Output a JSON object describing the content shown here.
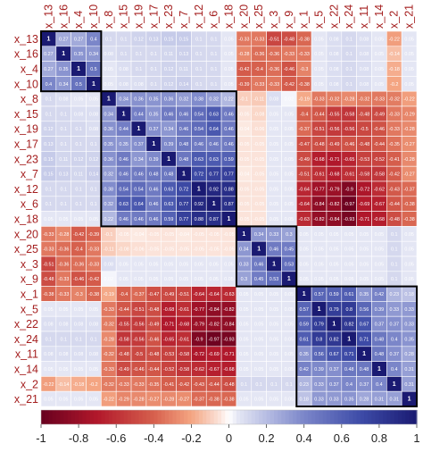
{
  "chart_data": {
    "type": "heatmap",
    "title": "",
    "variables": [
      "x_13",
      "x_16",
      "x_4",
      "x_10",
      "x_8",
      "x_15",
      "x_19",
      "x_17",
      "x_23",
      "x_7",
      "x_12",
      "x_6",
      "x_18",
      "x_20",
      "x_25",
      "x_3",
      "x_9",
      "x_1",
      "x_5",
      "x_22",
      "x_24",
      "x_11",
      "x_14",
      "x_2",
      "x_21"
    ],
    "clusters": [
      [
        0,
        3
      ],
      [
        4,
        12
      ],
      [
        13,
        16
      ],
      [
        17,
        24
      ]
    ],
    "colorbar": {
      "range": [
        -1,
        1
      ],
      "ticks": [
        "-1",
        "-0.8",
        "-0.6",
        "-0.4",
        "-0.2",
        "0",
        "0.2",
        "0.4",
        "0.6",
        "0.8",
        "1"
      ],
      "colors": {
        "negative": "#67001f",
        "mid": "#ffffff",
        "positive": "#1a1a72"
      }
    },
    "matrix": [
      [
        1,
        0.27,
        0.27,
        0.4,
        0.1,
        0.1,
        0.12,
        0.13,
        0.15,
        0.15,
        0.1,
        0.1,
        0.05,
        -0.33,
        -0.33,
        -0.51,
        -0.48,
        -0.38,
        0.05,
        0.08,
        0.1,
        0.08,
        0.05,
        -0.22,
        0.05
      ],
      [
        0.27,
        1,
        0.35,
        0.34,
        0.08,
        0.1,
        0.1,
        0.1,
        0.11,
        0.13,
        0.1,
        0.1,
        0.05,
        -0.28,
        -0.36,
        -0.36,
        -0.33,
        -0.33,
        0.05,
        0.08,
        0.1,
        0.08,
        0.05,
        -0.14,
        0.05
      ],
      [
        0.27,
        0.35,
        1,
        0.5,
        0.05,
        0.08,
        0.1,
        0.1,
        0.12,
        0.11,
        0.1,
        0.1,
        0.05,
        -0.42,
        -0.4,
        -0.36,
        -0.46,
        -0.3,
        0.05,
        0.08,
        0.1,
        0.08,
        0.05,
        -0.18,
        0.05
      ],
      [
        0.4,
        0.34,
        0.5,
        1,
        0.05,
        0.08,
        0.08,
        0.1,
        0.12,
        0.14,
        0.1,
        0.1,
        0.05,
        -0.39,
        -0.33,
        -0.33,
        -0.42,
        -0.38,
        0.05,
        0.08,
        0.1,
        0.08,
        0.05,
        -0.2,
        0.05
      ],
      [
        0.1,
        0.08,
        0.05,
        0.05,
        1,
        0.34,
        0.36,
        0.35,
        0.36,
        0.32,
        0.38,
        0.32,
        0.22,
        -0.1,
        -0.11,
        0.08,
        0.02,
        -0.19,
        -0.33,
        -0.32,
        -0.28,
        -0.32,
        -0.33,
        -0.32,
        -0.22
      ],
      [
        0.1,
        0.1,
        0.08,
        0.08,
        0.34,
        1,
        0.44,
        0.35,
        0.46,
        0.46,
        0.54,
        0.63,
        0.46,
        -0.05,
        -0.08,
        0.05,
        0.05,
        -0.4,
        -0.44,
        -0.55,
        -0.58,
        -0.48,
        -0.49,
        -0.33,
        -0.29
      ],
      [
        0.12,
        0.1,
        0.1,
        0.08,
        0.36,
        0.44,
        1,
        0.37,
        0.34,
        0.46,
        0.54,
        0.64,
        0.46,
        -0.04,
        -0.06,
        0.05,
        0.05,
        -0.37,
        -0.51,
        -0.56,
        -0.56,
        -0.5,
        -0.46,
        -0.33,
        -0.28
      ],
      [
        0.13,
        0.1,
        0.1,
        0.1,
        0.35,
        0.35,
        0.37,
        1,
        0.39,
        0.48,
        0.46,
        0.46,
        0.46,
        -0.05,
        -0.05,
        0.05,
        0.05,
        -0.47,
        -0.48,
        -0.49,
        -0.46,
        -0.48,
        -0.44,
        -0.35,
        -0.27
      ],
      [
        0.15,
        0.11,
        0.12,
        0.12,
        0.36,
        0.46,
        0.34,
        0.39,
        1,
        0.48,
        0.63,
        0.63,
        0.59,
        -0.05,
        -0.05,
        0.05,
        0.05,
        -0.49,
        -0.68,
        -0.71,
        -0.65,
        -0.53,
        -0.52,
        -0.41,
        -0.28
      ],
      [
        0.15,
        0.13,
        0.11,
        0.14,
        0.32,
        0.46,
        0.46,
        0.48,
        0.48,
        1,
        0.72,
        0.77,
        0.77,
        -0.04,
        -0.05,
        0.05,
        0.05,
        -0.51,
        -0.61,
        -0.68,
        -0.61,
        -0.58,
        -0.58,
        -0.42,
        -0.27
      ],
      [
        0.1,
        0.1,
        0.1,
        0.1,
        0.38,
        0.54,
        0.54,
        0.46,
        0.63,
        0.72,
        1,
        0.92,
        0.88,
        -0.05,
        -0.05,
        0.05,
        0.05,
        -0.64,
        -0.77,
        -0.79,
        -0.9,
        -0.72,
        -0.62,
        -0.43,
        -0.37
      ],
      [
        0.1,
        0.1,
        0.1,
        0.1,
        0.32,
        0.63,
        0.64,
        0.46,
        0.63,
        0.77,
        0.92,
        1,
        0.87,
        -0.05,
        -0.05,
        0.05,
        0.05,
        -0.64,
        -0.84,
        -0.82,
        -0.97,
        -0.69,
        -0.67,
        -0.44,
        -0.38
      ],
      [
        0.05,
        0.05,
        0.05,
        0.05,
        0.22,
        0.46,
        0.46,
        0.46,
        0.59,
        0.77,
        0.88,
        0.87,
        1,
        -0.05,
        -0.05,
        0.05,
        0.05,
        -0.63,
        -0.82,
        -0.84,
        -0.93,
        -0.71,
        -0.68,
        -0.48,
        -0.38
      ],
      [
        -0.33,
        -0.28,
        -0.42,
        -0.39,
        -0.1,
        -0.05,
        -0.04,
        -0.05,
        -0.05,
        -0.04,
        -0.05,
        -0.05,
        -0.05,
        1,
        0.34,
        0.33,
        0.3,
        0.05,
        0.05,
        0.05,
        0.05,
        0.05,
        0.05,
        0.1,
        0.05
      ],
      [
        -0.33,
        -0.36,
        -0.4,
        -0.33,
        -0.11,
        -0.08,
        -0.06,
        -0.05,
        -0.05,
        -0.05,
        -0.05,
        -0.05,
        -0.05,
        0.34,
        1,
        0.46,
        0.45,
        0.05,
        0.05,
        0.05,
        0.05,
        0.05,
        0.05,
        0.1,
        0.05
      ],
      [
        -0.51,
        -0.36,
        -0.36,
        -0.33,
        0.08,
        0.05,
        0.05,
        0.05,
        0.05,
        0.05,
        0.05,
        0.05,
        0.05,
        0.33,
        0.46,
        1,
        0.53,
        0.05,
        0.05,
        0.05,
        0.05,
        0.05,
        0.05,
        0.1,
        0.05
      ],
      [
        -0.48,
        -0.33,
        -0.46,
        -0.42,
        0.02,
        0.05,
        0.05,
        0.05,
        0.05,
        0.05,
        0.05,
        0.05,
        0.05,
        0.3,
        0.45,
        0.53,
        1,
        0.05,
        0.05,
        0.05,
        0.05,
        0.05,
        0.05,
        0.1,
        0.05
      ],
      [
        -0.38,
        -0.33,
        -0.3,
        -0.38,
        -0.19,
        -0.4,
        -0.37,
        -0.47,
        -0.49,
        -0.51,
        -0.64,
        -0.64,
        -0.63,
        0.05,
        0.05,
        0.05,
        0.05,
        1,
        0.57,
        0.59,
        0.61,
        0.35,
        0.42,
        0.23,
        0.18
      ],
      [
        0.05,
        0.05,
        0.05,
        0.05,
        -0.33,
        -0.44,
        -0.51,
        -0.48,
        -0.68,
        -0.61,
        -0.77,
        -0.84,
        -0.82,
        0.05,
        0.05,
        0.05,
        0.05,
        0.57,
        1,
        0.79,
        0.8,
        0.56,
        0.39,
        0.33,
        0.33
      ],
      [
        0.08,
        0.08,
        0.08,
        0.08,
        -0.32,
        -0.55,
        -0.56,
        -0.49,
        -0.71,
        -0.68,
        -0.79,
        -0.82,
        -0.84,
        0.05,
        0.05,
        0.05,
        0.05,
        0.59,
        0.79,
        1,
        0.82,
        0.67,
        0.37,
        0.37,
        0.33
      ],
      [
        0.1,
        0.1,
        0.1,
        0.1,
        -0.28,
        -0.58,
        -0.56,
        -0.46,
        -0.65,
        -0.61,
        -0.9,
        -0.97,
        -0.93,
        0.05,
        0.05,
        0.05,
        0.05,
        0.61,
        0.8,
        0.82,
        1,
        0.71,
        0.48,
        0.4,
        0.35
      ],
      [
        0.08,
        0.08,
        0.08,
        0.08,
        -0.32,
        -0.48,
        -0.5,
        -0.48,
        -0.53,
        -0.58,
        -0.72,
        -0.69,
        -0.71,
        0.05,
        0.05,
        0.05,
        0.05,
        0.35,
        0.56,
        0.67,
        0.71,
        1,
        0.48,
        0.37,
        0.28
      ],
      [
        0.05,
        0.05,
        0.05,
        0.05,
        -0.33,
        -0.49,
        -0.46,
        -0.44,
        -0.52,
        -0.58,
        -0.62,
        -0.67,
        -0.68,
        0.05,
        0.05,
        0.05,
        0.05,
        0.42,
        0.39,
        0.37,
        0.48,
        0.48,
        1,
        0.4,
        0.31
      ],
      [
        -0.22,
        -0.14,
        -0.18,
        -0.2,
        -0.32,
        -0.33,
        -0.33,
        -0.35,
        -0.41,
        -0.42,
        -0.43,
        -0.44,
        -0.48,
        0.1,
        0.1,
        0.1,
        0.1,
        0.23,
        0.33,
        0.37,
        0.4,
        0.37,
        0.4,
        1,
        0.31
      ],
      [
        0.05,
        0.05,
        0.05,
        0.05,
        -0.22,
        -0.29,
        -0.28,
        -0.27,
        -0.28,
        -0.27,
        -0.37,
        -0.38,
        -0.38,
        0.05,
        0.05,
        0.05,
        0.05,
        0.18,
        0.33,
        0.33,
        0.35,
        0.28,
        0.31,
        0.31,
        1
      ]
    ]
  }
}
